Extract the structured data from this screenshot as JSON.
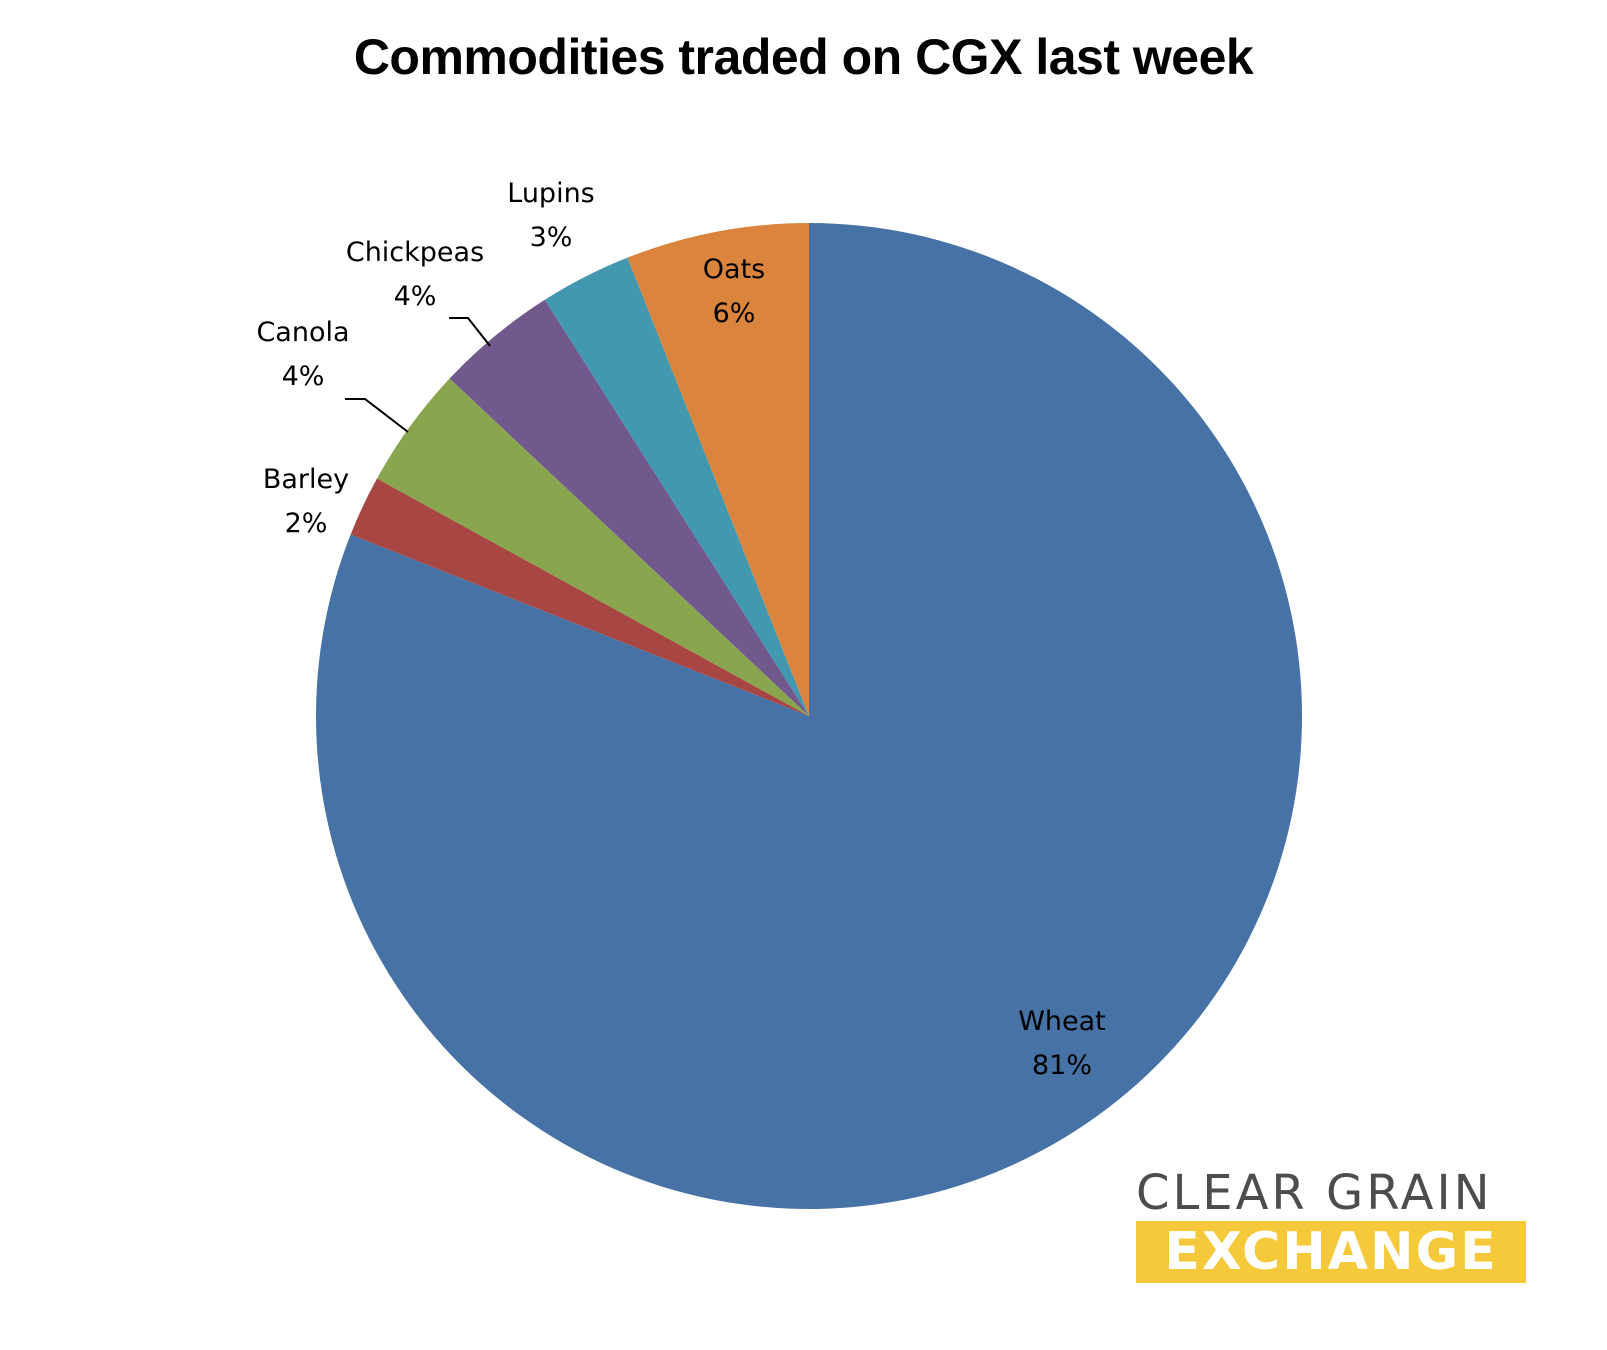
{
  "chart_data": {
    "type": "pie",
    "title": "Commodities traded on CGX last week",
    "slices": [
      {
        "label": "Wheat",
        "value": 81,
        "value_label": "81%",
        "color": "#4672a6"
      },
      {
        "label": "Barley",
        "value": 2,
        "value_label": "2%",
        "color": "#a84644"
      },
      {
        "label": "Canola",
        "value": 4,
        "value_label": "4%",
        "color": "#89a54e"
      },
      {
        "label": "Chickpeas",
        "value": 4,
        "value_label": "4%",
        "color": "#71598e"
      },
      {
        "label": "Lupins",
        "value": 3,
        "value_label": "3%",
        "color": "#4298af"
      },
      {
        "label": "Oats",
        "value": 6,
        "value_label": "6%",
        "color": "#db843d"
      }
    ],
    "start": "12 o'clock",
    "direction": "clockwise",
    "legend": "none"
  },
  "brand": {
    "line1": "CLEAR GRAIN",
    "line2": "EXCHANGE",
    "text_color": "#4d4d4d",
    "accent_color": "#f5c93a"
  }
}
